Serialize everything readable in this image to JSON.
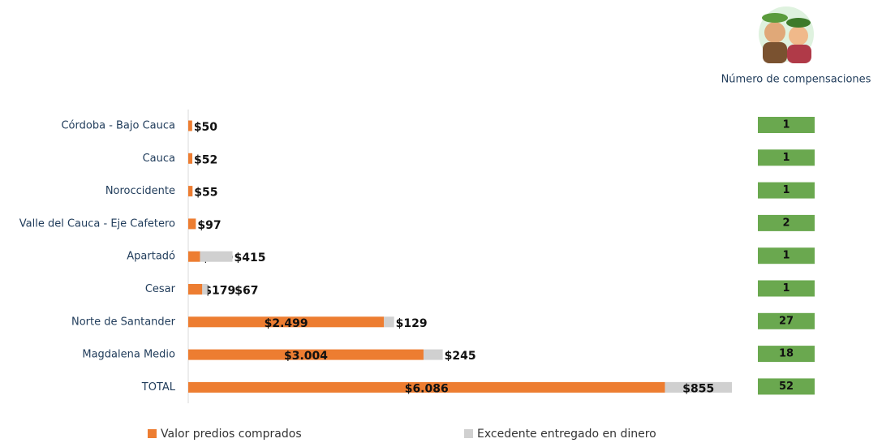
{
  "chart_data": {
    "type": "stacked-barh",
    "categories": [
      "Córdoba - Bajo Cauca",
      "Cauca",
      "Noroccidente",
      "Valle del Cauca - Eje Cafetero",
      "Apartadó",
      "Cesar",
      "Norte de Santander",
      "Magdalena Medio",
      "TOTAL"
    ],
    "series": [
      {
        "name": "Valor predios comprados",
        "color": "#ed7d31",
        "values": [
          50,
          52,
          55,
          97,
          150,
          179,
          2499,
          3004,
          6086
        ],
        "value_labels": [
          "$50",
          "$52",
          "$55",
          "$97",
          "$150",
          "$179",
          "$2.499",
          "$3.004",
          "$6.086"
        ]
      },
      {
        "name": "Excedente entregado en dinero",
        "color": "#d0d0d0",
        "values": [
          null,
          null,
          null,
          null,
          415,
          67,
          129,
          245,
          855
        ],
        "value_labels": [
          null,
          null,
          null,
          null,
          "$415",
          "$67",
          "$129",
          "$245",
          "$855"
        ]
      }
    ],
    "legend": "bottom",
    "compensaciones": {
      "title": "Número de compensaciones",
      "color": "#6aa84f",
      "values": [
        1,
        1,
        1,
        2,
        1,
        1,
        27,
        18,
        52
      ]
    }
  }
}
